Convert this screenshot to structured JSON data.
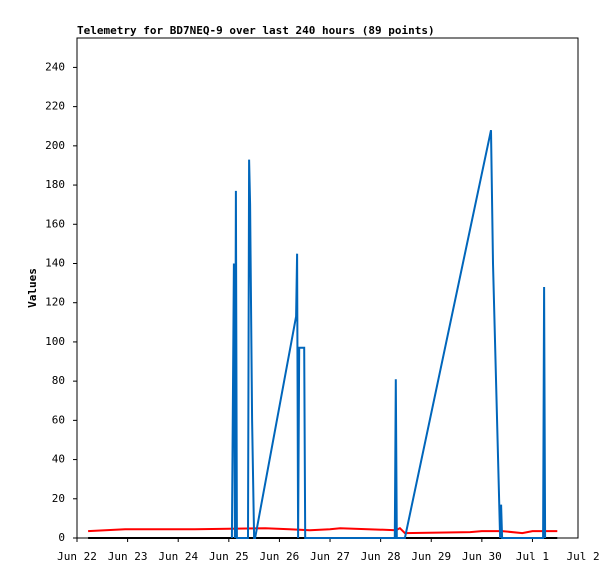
{
  "chart_data": {
    "type": "line",
    "title": "Telemetry for BD7NEQ-9 over last 240 hours (89 points)",
    "y_label": "Values",
    "xlim": [
      0,
      9.9
    ],
    "xticks": [
      {
        "value": 0,
        "label": "Jun 22"
      },
      {
        "value": 1,
        "label": "Jun 23"
      },
      {
        "value": 2,
        "label": "Jun 24"
      },
      {
        "value": 3,
        "label": "Jun 25"
      },
      {
        "value": 4,
        "label": "Jun 26"
      },
      {
        "value": 5,
        "label": "Jun 27"
      },
      {
        "value": 6,
        "label": "Jun 28"
      },
      {
        "value": 7,
        "label": "Jun 29"
      },
      {
        "value": 8,
        "label": "Jun 30"
      },
      {
        "value": 9,
        "label": "Jul 1"
      },
      {
        "value": 10,
        "label": "Jul 2"
      }
    ],
    "ylim": [
      0,
      255
    ],
    "yticks": [
      0,
      20,
      40,
      60,
      80,
      100,
      120,
      140,
      160,
      180,
      200,
      220,
      240
    ],
    "grid": false,
    "series": [
      {
        "color": "#000000",
        "x": [
          0.22,
          9.49
        ],
        "values": [
          0,
          0
        ]
      },
      {
        "color": "#ff0000",
        "x": [
          0.22,
          0.95,
          2.33,
          3.72,
          4.2,
          4.6,
          5.0,
          5.2,
          6.3,
          6.38,
          6.48,
          7.77,
          8.0,
          8.4,
          8.8,
          9.0,
          9.49
        ],
        "values": [
          3.5,
          4.5,
          4.5,
          5,
          4.5,
          4,
          4.5,
          5,
          4,
          5,
          2.5,
          3,
          3.5,
          3.5,
          2.5,
          3.5,
          3.5
        ]
      },
      {
        "color": "#0066bb",
        "x": [
          3.06,
          3.1,
          3.12,
          3.14,
          3.16,
          3.38,
          3.4,
          3.42,
          3.46,
          3.5,
          3.52,
          4.33,
          4.35,
          4.37,
          4.39,
          4.49,
          4.51,
          6.28,
          6.3,
          6.32,
          6.48,
          8.18,
          8.22,
          8.34,
          8.36,
          8.38,
          8.4,
          9.21,
          9.23,
          9.25
        ],
        "values": [
          0,
          140,
          0,
          177,
          0,
          0,
          193,
          170,
          60,
          0,
          0,
          113,
          145,
          0,
          97,
          97,
          0,
          0,
          81,
          0,
          0,
          208,
          140,
          20,
          0,
          17,
          0,
          0,
          128,
          0
        ]
      }
    ]
  }
}
